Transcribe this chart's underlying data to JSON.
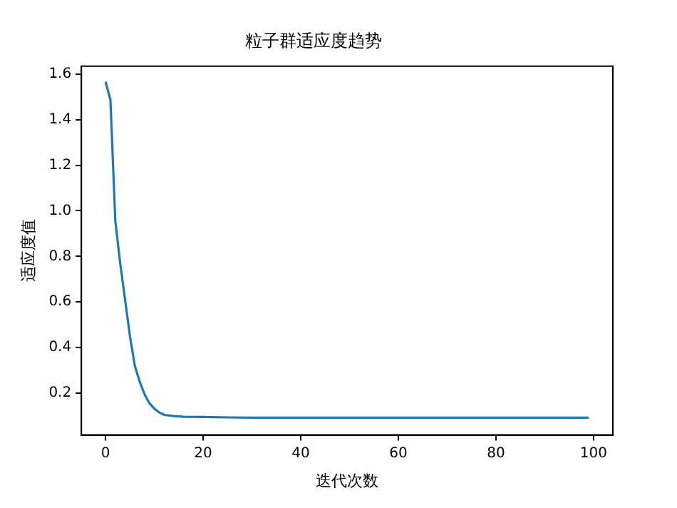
{
  "chart_data": {
    "type": "line",
    "title": "粒子群适应度趋势",
    "xlabel": "迭代次数",
    "ylabel": "适应度值",
    "x": [
      0,
      1,
      2,
      3,
      4,
      5,
      6,
      7,
      8,
      9,
      10,
      11,
      12,
      14,
      16,
      20,
      25,
      30,
      40,
      50,
      60,
      70,
      80,
      90,
      99
    ],
    "series": [
      {
        "color": "#1f77b4",
        "values": [
          1.566,
          1.487,
          0.955,
          0.77,
          0.61,
          0.45,
          0.32,
          0.25,
          0.195,
          0.156,
          0.132,
          0.116,
          0.105,
          0.1,
          0.097,
          0.096,
          0.094,
          0.093,
          0.093,
          0.093,
          0.093,
          0.093,
          0.093,
          0.093,
          0.093
        ]
      }
    ],
    "xlim": [
      -4.95,
      103.95
    ],
    "xticks": [
      0,
      20,
      40,
      60,
      80,
      100
    ],
    "ylim": [
      0.017,
      1.634
    ],
    "yticks": [
      0.2,
      0.4,
      0.6,
      0.8,
      {
        "value": 1,
        "label": "1.0"
      },
      1.2,
      1.4,
      1.6
    ],
    "grid": false,
    "legend": false,
    "marker": "none",
    "line_style": "solid"
  }
}
